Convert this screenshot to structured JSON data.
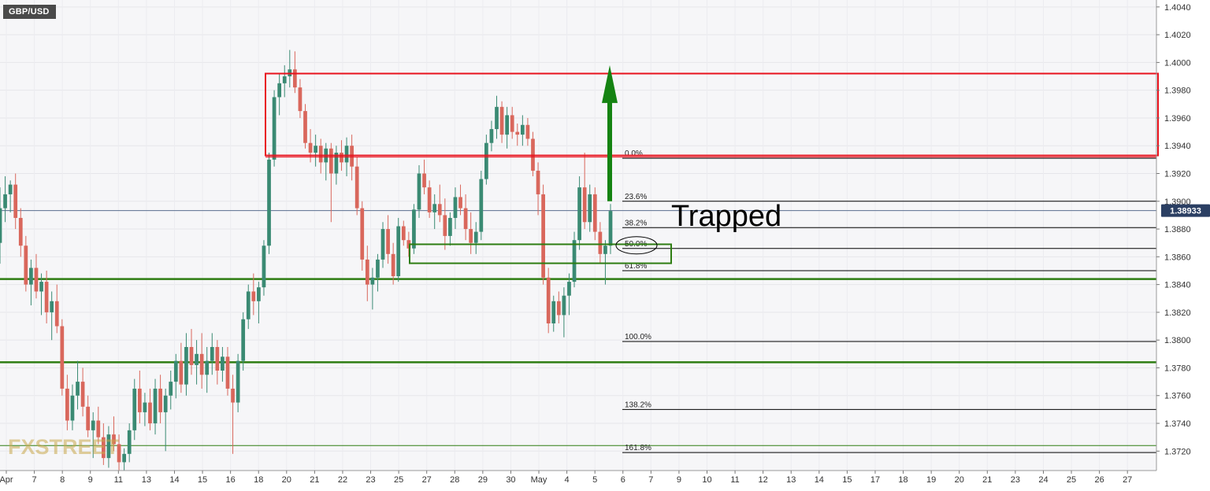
{
  "symbol": "GBP/USD",
  "annotation": "Trapped",
  "watermark": "FXSTREET",
  "colors": {
    "up": "#3a8a73",
    "down": "#d9675c",
    "zone": "#e8121d",
    "support": "#2e7d12",
    "arrow": "#158312",
    "price_tag": "#2b3f63",
    "grid": "#e6e6ea",
    "axis_text": "#333333"
  },
  "chart_data": {
    "type": "candlestick",
    "symbol": "GBP/USD",
    "ylim": [
      1.3706,
      1.4045
    ],
    "current_price": {
      "value": 1.38933,
      "label": "1.38933"
    },
    "y_ticks": [
      "1.4040",
      "1.4020",
      "1.4000",
      "1.3980",
      "1.3960",
      "1.3940",
      "1.3920",
      "1.3900",
      "1.3880",
      "1.3860",
      "1.3840",
      "1.3820",
      "1.3800",
      "1.3780",
      "1.3760",
      "1.3740",
      "1.3720"
    ],
    "x_ticks": [
      "Apr",
      "7",
      "8",
      "9",
      "11",
      "13",
      "14",
      "15",
      "16",
      "18",
      "20",
      "21",
      "22",
      "23",
      "25",
      "27",
      "28",
      "29",
      "30",
      "May",
      "4",
      "5",
      "6",
      "7",
      "9",
      "10",
      "11",
      "12",
      "13",
      "14",
      "15",
      "17",
      "18",
      "19",
      "20",
      "21",
      "23",
      "24",
      "25",
      "26",
      "27"
    ],
    "fibonacci": [
      {
        "label": "0.0%",
        "price": 1.3931
      },
      {
        "label": "23.6%",
        "price": 1.39
      },
      {
        "label": "38.2%",
        "price": 1.3881
      },
      {
        "label": "50.0%",
        "price": 1.3866
      },
      {
        "label": "61.8%",
        "price": 1.385
      },
      {
        "label": "100.0%",
        "price": 1.3799
      },
      {
        "label": "138.2%",
        "price": 1.375
      },
      {
        "label": "161.8%",
        "price": 1.3719
      }
    ],
    "resistance_zone": {
      "top": 1.3992,
      "bottom": 1.3933
    },
    "support_box": {
      "top": 1.3869,
      "bottom": 1.3861
    },
    "support_lines": [
      1.3844,
      1.3784,
      1.3724
    ],
    "arrow": {
      "from": 1.39,
      "to": 1.3998,
      "direction": "up"
    },
    "candles": [
      {
        "o": 1.387,
        "h": 1.391,
        "l": 1.3855,
        "c": 1.3895
      },
      {
        "o": 1.3895,
        "h": 1.3918,
        "l": 1.3885,
        "c": 1.3905
      },
      {
        "o": 1.3905,
        "h": 1.3915,
        "l": 1.3892,
        "c": 1.3912
      },
      {
        "o": 1.3912,
        "h": 1.392,
        "l": 1.388,
        "c": 1.3888
      },
      {
        "o": 1.3888,
        "h": 1.3895,
        "l": 1.386,
        "c": 1.3868
      },
      {
        "o": 1.3868,
        "h": 1.3875,
        "l": 1.3835,
        "c": 1.384
      },
      {
        "o": 1.384,
        "h": 1.3858,
        "l": 1.3825,
        "c": 1.3852
      },
      {
        "o": 1.3852,
        "h": 1.3862,
        "l": 1.383,
        "c": 1.3835
      },
      {
        "o": 1.3835,
        "h": 1.3848,
        "l": 1.3818,
        "c": 1.3842
      },
      {
        "o": 1.3842,
        "h": 1.385,
        "l": 1.3812,
        "c": 1.382
      },
      {
        "o": 1.382,
        "h": 1.3835,
        "l": 1.38,
        "c": 1.3828
      },
      {
        "o": 1.3828,
        "h": 1.384,
        "l": 1.3805,
        "c": 1.381
      },
      {
        "o": 1.381,
        "h": 1.3815,
        "l": 1.376,
        "c": 1.3765
      },
      {
        "o": 1.3765,
        "h": 1.3775,
        "l": 1.3735,
        "c": 1.3742
      },
      {
        "o": 1.3742,
        "h": 1.3768,
        "l": 1.3735,
        "c": 1.376
      },
      {
        "o": 1.376,
        "h": 1.3785,
        "l": 1.375,
        "c": 1.377
      },
      {
        "o": 1.377,
        "h": 1.378,
        "l": 1.3745,
        "c": 1.3752
      },
      {
        "o": 1.3752,
        "h": 1.376,
        "l": 1.373,
        "c": 1.3735
      },
      {
        "o": 1.3735,
        "h": 1.3748,
        "l": 1.3715,
        "c": 1.3742
      },
      {
        "o": 1.3742,
        "h": 1.3752,
        "l": 1.3725,
        "c": 1.373
      },
      {
        "o": 1.373,
        "h": 1.374,
        "l": 1.371,
        "c": 1.3715
      },
      {
        "o": 1.3715,
        "h": 1.3738,
        "l": 1.3708,
        "c": 1.3732
      },
      {
        "o": 1.3732,
        "h": 1.3745,
        "l": 1.372,
        "c": 1.3725
      },
      {
        "o": 1.3725,
        "h": 1.3732,
        "l": 1.3706,
        "c": 1.3712
      },
      {
        "o": 1.3712,
        "h": 1.3722,
        "l": 1.3706,
        "c": 1.3718
      },
      {
        "o": 1.3718,
        "h": 1.374,
        "l": 1.3712,
        "c": 1.3735
      },
      {
        "o": 1.3735,
        "h": 1.3772,
        "l": 1.3728,
        "c": 1.3765
      },
      {
        "o": 1.3765,
        "h": 1.3778,
        "l": 1.374,
        "c": 1.3748
      },
      {
        "o": 1.3748,
        "h": 1.3762,
        "l": 1.3738,
        "c": 1.3755
      },
      {
        "o": 1.3755,
        "h": 1.3765,
        "l": 1.3735,
        "c": 1.374
      },
      {
        "o": 1.374,
        "h": 1.3772,
        "l": 1.3732,
        "c": 1.3765
      },
      {
        "o": 1.3765,
        "h": 1.3775,
        "l": 1.374,
        "c": 1.3748
      },
      {
        "o": 1.3748,
        "h": 1.3765,
        "l": 1.372,
        "c": 1.376
      },
      {
        "o": 1.376,
        "h": 1.3778,
        "l": 1.375,
        "c": 1.377
      },
      {
        "o": 1.377,
        "h": 1.379,
        "l": 1.3758,
        "c": 1.3785
      },
      {
        "o": 1.3785,
        "h": 1.3798,
        "l": 1.3762,
        "c": 1.3768
      },
      {
        "o": 1.3768,
        "h": 1.3805,
        "l": 1.376,
        "c": 1.3795
      },
      {
        "o": 1.3795,
        "h": 1.3808,
        "l": 1.3775,
        "c": 1.3782
      },
      {
        "o": 1.3782,
        "h": 1.38,
        "l": 1.3768,
        "c": 1.379
      },
      {
        "o": 1.379,
        "h": 1.3805,
        "l": 1.3765,
        "c": 1.3775
      },
      {
        "o": 1.3775,
        "h": 1.3795,
        "l": 1.3762,
        "c": 1.3785
      },
      {
        "o": 1.3785,
        "h": 1.3805,
        "l": 1.3775,
        "c": 1.3795
      },
      {
        "o": 1.3795,
        "h": 1.38,
        "l": 1.3768,
        "c": 1.3778
      },
      {
        "o": 1.3778,
        "h": 1.3795,
        "l": 1.377,
        "c": 1.3788
      },
      {
        "o": 1.3788,
        "h": 1.3795,
        "l": 1.376,
        "c": 1.3765
      },
      {
        "o": 1.3765,
        "h": 1.3775,
        "l": 1.3718,
        "c": 1.3755
      },
      {
        "o": 1.3755,
        "h": 1.379,
        "l": 1.3748,
        "c": 1.3785
      },
      {
        "o": 1.3785,
        "h": 1.382,
        "l": 1.3778,
        "c": 1.3815
      },
      {
        "o": 1.3815,
        "h": 1.384,
        "l": 1.3808,
        "c": 1.3835
      },
      {
        "o": 1.3835,
        "h": 1.3848,
        "l": 1.3818,
        "c": 1.3828
      },
      {
        "o": 1.3828,
        "h": 1.3842,
        "l": 1.3812,
        "c": 1.3838
      },
      {
        "o": 1.3838,
        "h": 1.3872,
        "l": 1.3832,
        "c": 1.3868
      },
      {
        "o": 1.3868,
        "h": 1.3935,
        "l": 1.3862,
        "c": 1.393
      },
      {
        "o": 1.393,
        "h": 1.398,
        "l": 1.3925,
        "c": 1.3975
      },
      {
        "o": 1.3975,
        "h": 1.3992,
        "l": 1.3962,
        "c": 1.3985
      },
      {
        "o": 1.3985,
        "h": 1.3998,
        "l": 1.3975,
        "c": 1.399
      },
      {
        "o": 1.399,
        "h": 1.4009,
        "l": 1.3982,
        "c": 1.3995
      },
      {
        "o": 1.3995,
        "h": 1.4008,
        "l": 1.3978,
        "c": 1.3982
      },
      {
        "o": 1.3982,
        "h": 1.3988,
        "l": 1.396,
        "c": 1.3965
      },
      {
        "o": 1.3965,
        "h": 1.397,
        "l": 1.3938,
        "c": 1.3942
      },
      {
        "o": 1.3942,
        "h": 1.3952,
        "l": 1.3928,
        "c": 1.3935
      },
      {
        "o": 1.3935,
        "h": 1.3948,
        "l": 1.3925,
        "c": 1.394
      },
      {
        "o": 1.394,
        "h": 1.3945,
        "l": 1.392,
        "c": 1.3928
      },
      {
        "o": 1.3928,
        "h": 1.3942,
        "l": 1.3915,
        "c": 1.3938
      },
      {
        "o": 1.3938,
        "h": 1.3942,
        "l": 1.3885,
        "c": 1.392
      },
      {
        "o": 1.392,
        "h": 1.394,
        "l": 1.3912,
        "c": 1.3935
      },
      {
        "o": 1.3935,
        "h": 1.3944,
        "l": 1.3922,
        "c": 1.3928
      },
      {
        "o": 1.3928,
        "h": 1.3946,
        "l": 1.3918,
        "c": 1.394
      },
      {
        "o": 1.394,
        "h": 1.3948,
        "l": 1.3915,
        "c": 1.3925
      },
      {
        "o": 1.3925,
        "h": 1.3932,
        "l": 1.389,
        "c": 1.3895
      },
      {
        "o": 1.3895,
        "h": 1.39,
        "l": 1.385,
        "c": 1.3858
      },
      {
        "o": 1.3858,
        "h": 1.3868,
        "l": 1.3828,
        "c": 1.384
      },
      {
        "o": 1.384,
        "h": 1.3852,
        "l": 1.3822,
        "c": 1.3845
      },
      {
        "o": 1.3845,
        "h": 1.3862,
        "l": 1.3835,
        "c": 1.3858
      },
      {
        "o": 1.3858,
        "h": 1.3885,
        "l": 1.3852,
        "c": 1.388
      },
      {
        "o": 1.388,
        "h": 1.389,
        "l": 1.3855,
        "c": 1.3862
      },
      {
        "o": 1.3862,
        "h": 1.387,
        "l": 1.384,
        "c": 1.3846
      },
      {
        "o": 1.3846,
        "h": 1.3888,
        "l": 1.3842,
        "c": 1.3882
      },
      {
        "o": 1.3882,
        "h": 1.3886,
        "l": 1.3868,
        "c": 1.3872
      },
      {
        "o": 1.3872,
        "h": 1.3878,
        "l": 1.386,
        "c": 1.3866
      },
      {
        "o": 1.3866,
        "h": 1.3898,
        "l": 1.3862,
        "c": 1.3894
      },
      {
        "o": 1.3894,
        "h": 1.3926,
        "l": 1.3888,
        "c": 1.392
      },
      {
        "o": 1.392,
        "h": 1.393,
        "l": 1.3905,
        "c": 1.391
      },
      {
        "o": 1.391,
        "h": 1.3915,
        "l": 1.3888,
        "c": 1.3892
      },
      {
        "o": 1.3892,
        "h": 1.3905,
        "l": 1.388,
        "c": 1.3898
      },
      {
        "o": 1.3898,
        "h": 1.3912,
        "l": 1.3885,
        "c": 1.389
      },
      {
        "o": 1.389,
        "h": 1.3902,
        "l": 1.3865,
        "c": 1.3875
      },
      {
        "o": 1.3875,
        "h": 1.3892,
        "l": 1.3868,
        "c": 1.3888
      },
      {
        "o": 1.3888,
        "h": 1.391,
        "l": 1.388,
        "c": 1.3903
      },
      {
        "o": 1.3903,
        "h": 1.3912,
        "l": 1.389,
        "c": 1.3895
      },
      {
        "o": 1.3895,
        "h": 1.3905,
        "l": 1.3872,
        "c": 1.388
      },
      {
        "o": 1.388,
        "h": 1.3892,
        "l": 1.3862,
        "c": 1.387
      },
      {
        "o": 1.387,
        "h": 1.3885,
        "l": 1.3862,
        "c": 1.3878
      },
      {
        "o": 1.3878,
        "h": 1.3922,
        "l": 1.3872,
        "c": 1.3916
      },
      {
        "o": 1.3916,
        "h": 1.3948,
        "l": 1.3912,
        "c": 1.3942
      },
      {
        "o": 1.3942,
        "h": 1.3958,
        "l": 1.3936,
        "c": 1.3952
      },
      {
        "o": 1.3952,
        "h": 1.3976,
        "l": 1.3945,
        "c": 1.3968
      },
      {
        "o": 1.3968,
        "h": 1.3972,
        "l": 1.3942,
        "c": 1.3948
      },
      {
        "o": 1.3948,
        "h": 1.3968,
        "l": 1.3938,
        "c": 1.3962
      },
      {
        "o": 1.3962,
        "h": 1.3968,
        "l": 1.3945,
        "c": 1.395
      },
      {
        "o": 1.395,
        "h": 1.3956,
        "l": 1.394,
        "c": 1.3948
      },
      {
        "o": 1.3948,
        "h": 1.3962,
        "l": 1.394,
        "c": 1.3955
      },
      {
        "o": 1.3955,
        "h": 1.396,
        "l": 1.394,
        "c": 1.3945
      },
      {
        "o": 1.3945,
        "h": 1.395,
        "l": 1.3918,
        "c": 1.3922
      },
      {
        "o": 1.3922,
        "h": 1.3928,
        "l": 1.389,
        "c": 1.3905
      },
      {
        "o": 1.3905,
        "h": 1.3912,
        "l": 1.384,
        "c": 1.3845
      },
      {
        "o": 1.3845,
        "h": 1.3852,
        "l": 1.3805,
        "c": 1.3812
      },
      {
        "o": 1.3812,
        "h": 1.3832,
        "l": 1.3806,
        "c": 1.3828
      },
      {
        "o": 1.3828,
        "h": 1.3835,
        "l": 1.3812,
        "c": 1.3818
      },
      {
        "o": 1.3818,
        "h": 1.3838,
        "l": 1.3802,
        "c": 1.3832
      },
      {
        "o": 1.3832,
        "h": 1.3848,
        "l": 1.3818,
        "c": 1.3842
      },
      {
        "o": 1.3842,
        "h": 1.3878,
        "l": 1.3838,
        "c": 1.3872
      },
      {
        "o": 1.3872,
        "h": 1.3918,
        "l": 1.3865,
        "c": 1.391
      },
      {
        "o": 1.391,
        "h": 1.3935,
        "l": 1.388,
        "c": 1.3885
      },
      {
        "o": 1.3885,
        "h": 1.3912,
        "l": 1.3878,
        "c": 1.3905
      },
      {
        "o": 1.3905,
        "h": 1.391,
        "l": 1.3872,
        "c": 1.3878
      },
      {
        "o": 1.3878,
        "h": 1.3885,
        "l": 1.3855,
        "c": 1.3862
      },
      {
        "o": 1.3862,
        "h": 1.3872,
        "l": 1.384,
        "c": 1.3868
      },
      {
        "o": 1.3868,
        "h": 1.3898,
        "l": 1.3862,
        "c": 1.3893
      }
    ]
  }
}
